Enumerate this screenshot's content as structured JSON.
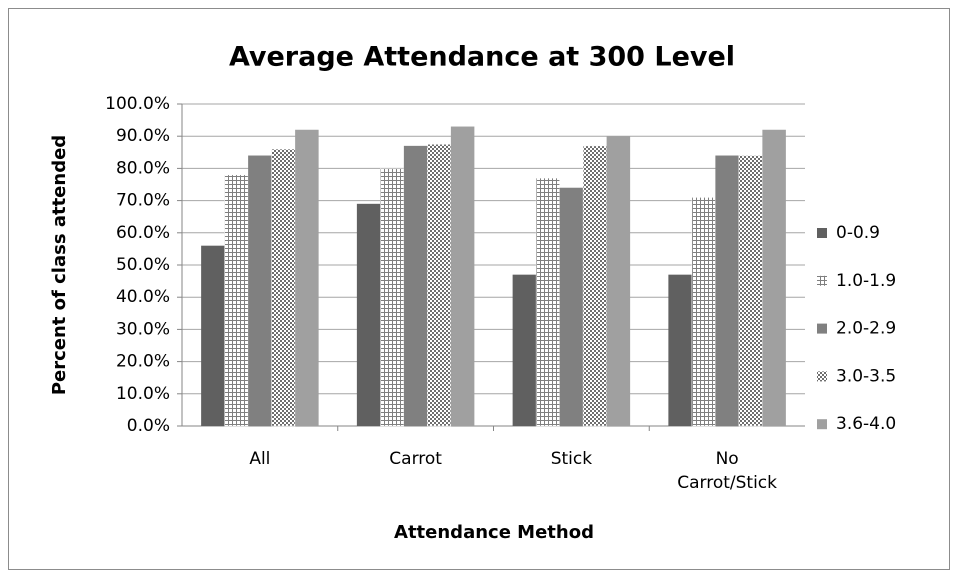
{
  "chart_data": {
    "type": "bar",
    "title": "Average Attendance at 300 Level",
    "x_label": "Attendance Method",
    "y_label": "Percent of class attended",
    "categories": [
      "All",
      "Carrot",
      "Stick",
      "No Carrot/Stick"
    ],
    "series": [
      {
        "name": "0-0.9",
        "color": "#606060",
        "values": [
          56,
          69,
          47,
          47
        ]
      },
      {
        "name": "1.0-1.9",
        "color": "#7f7f7f",
        "pattern": "grid",
        "values": [
          78,
          80,
          77,
          71
        ]
      },
      {
        "name": "2.0-2.9",
        "color": "#808080",
        "values": [
          84,
          87,
          74,
          84
        ]
      },
      {
        "name": "3.0-3.5",
        "color": "#6e6e6e",
        "pattern": "crosshatch",
        "values": [
          86,
          87.5,
          87,
          84
        ]
      },
      {
        "name": "3.6-4.0",
        "color": "#a0a0a0",
        "values": [
          92,
          93,
          90,
          92
        ]
      }
    ],
    "ylim": [
      0,
      100
    ],
    "yticks": [
      {
        "value": 0,
        "label": "0.0%"
      },
      {
        "value": 10,
        "label": "10.0%"
      },
      {
        "value": 20,
        "label": "20.0%"
      },
      {
        "value": 30,
        "label": "30.0%"
      },
      {
        "value": 40,
        "label": "40.0%"
      },
      {
        "value": 50,
        "label": "50.0%"
      },
      {
        "value": 60,
        "label": "60.0%"
      },
      {
        "value": 70,
        "label": "70.0%"
      },
      {
        "value": 80,
        "label": "80.0%"
      },
      {
        "value": 90,
        "label": "90.0%"
      },
      {
        "value": 100,
        "label": "100.0%"
      }
    ],
    "grid": true,
    "legend": "right"
  }
}
